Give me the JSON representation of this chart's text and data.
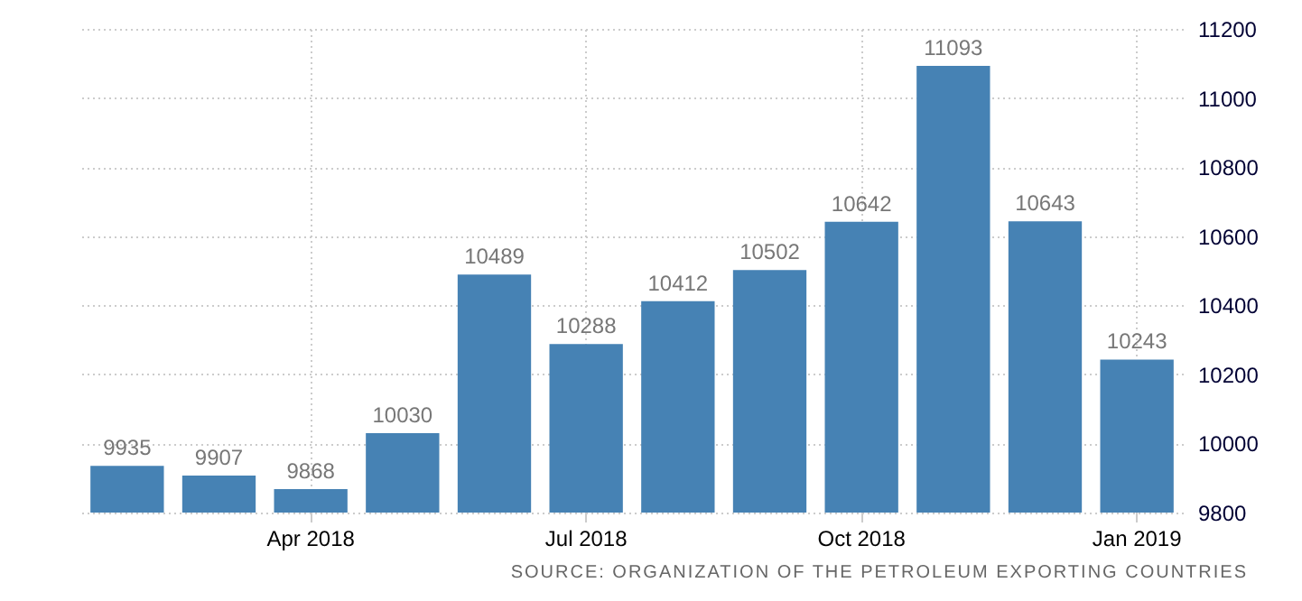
{
  "chart_data": {
    "type": "bar",
    "categories": [
      null,
      null,
      "Apr 2018",
      null,
      null,
      "Jul 2018",
      null,
      null,
      "Oct 2018",
      null,
      null,
      "Jan 2019"
    ],
    "values": [
      9935,
      9907,
      9868,
      10030,
      10489,
      10288,
      10412,
      10502,
      10642,
      11093,
      10643,
      10243
    ],
    "color": "#4682b4",
    "ylim": [
      9800,
      11200
    ],
    "yticks": [
      9800,
      10000,
      10200,
      10400,
      10600,
      10800,
      11000,
      11200
    ],
    "grid": true,
    "data_labels": true,
    "annotations": [
      "SOURCE: ORGANIZATION OF THE PETROLEUM EXPORTING COUNTRIES"
    ]
  }
}
